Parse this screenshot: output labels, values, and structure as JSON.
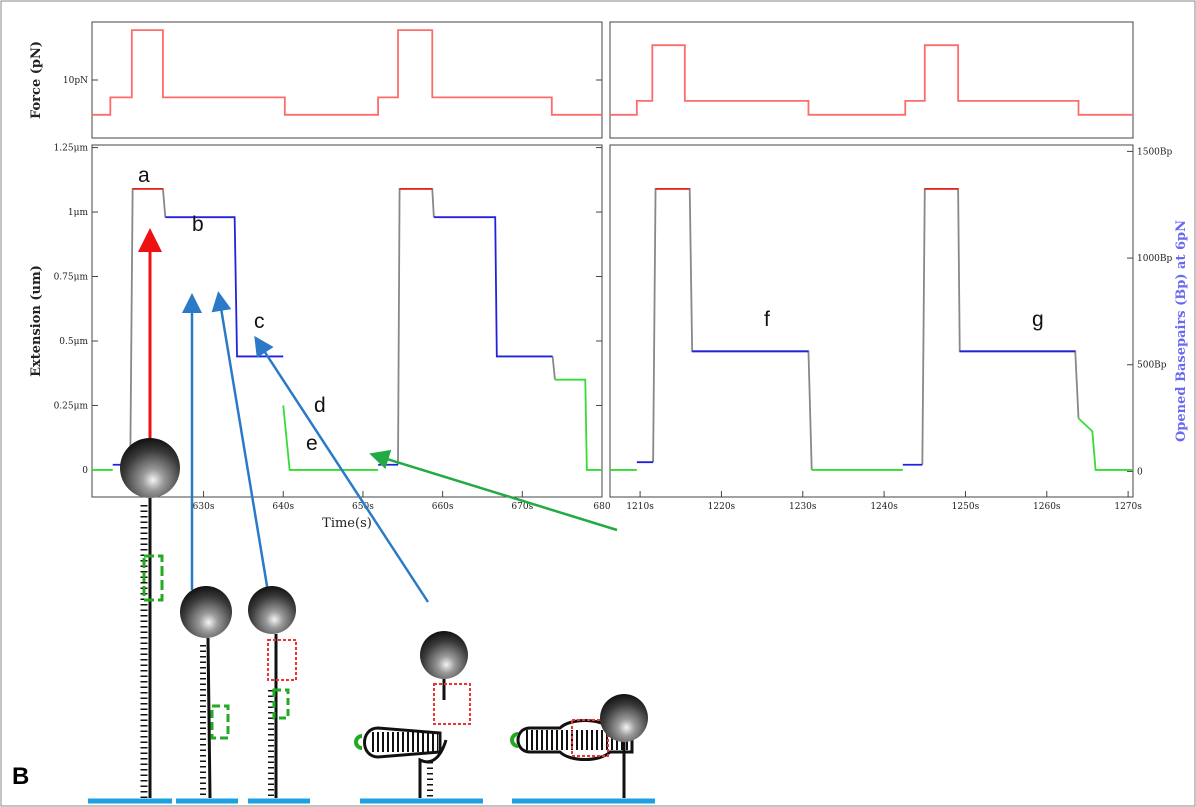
{
  "chart_data": [
    {
      "type": "line",
      "ylabel": "Force (pN)",
      "x": [
        616,
        618.3,
        618.3,
        621,
        621,
        624.9,
        624.9,
        640.2,
        640.2,
        651.9,
        651.9,
        654.4,
        654.4,
        658.7,
        658.7,
        673.7,
        673.7,
        680
      ],
      "xlim": [
        616,
        680
      ],
      "ylim": [
        0,
        20
      ],
      "yticks": [
        {
          "value": 10,
          "label": "10pN"
        }
      ],
      "series": [
        {
          "color": "#ff6b6b",
          "values": [
            4,
            4,
            7,
            7,
            18.6,
            18.6,
            7,
            7,
            4,
            4,
            7,
            7,
            18.6,
            18.6,
            7,
            7,
            4,
            4
          ]
        }
      ]
    },
    {
      "type": "line",
      "ylabel": "Extension (um)",
      "xlabel": "Time(s)",
      "x": [
        616,
        618.6,
        620.8,
        621.1,
        624.9,
        625.2,
        633.9,
        634.2,
        640.0,
        640.8,
        651.9,
        654.4,
        654.6,
        658.7,
        658.9,
        666.6,
        666.8,
        673.8,
        674.1,
        677.9,
        678.1,
        680
      ],
      "xlim": [
        616,
        680
      ],
      "xticks": [
        {
          "value": 630,
          "label": "630s"
        },
        {
          "value": 640,
          "label": "640s"
        },
        {
          "value": 650,
          "label": "650s"
        },
        {
          "value": 660,
          "label": "660s"
        },
        {
          "value": 670,
          "label": "670s"
        },
        680
      ],
      "ylim": [
        -0.105,
        1.26
      ],
      "yticks": [
        0,
        {
          "value": 0.25,
          "label": "0.25μm"
        },
        {
          "value": 0.5,
          "label": "0.5μm"
        },
        {
          "value": 0.75,
          "label": "0.75μm"
        },
        {
          "value": 1,
          "label": "1μm"
        },
        {
          "value": 1.25,
          "label": "1.25μm"
        }
      ],
      "series": [
        {
          "color": "#888888",
          "values": [
            null,
            null,
            0.02,
            1.09,
            1.09,
            0.98,
            null,
            null,
            null,
            null,
            null,
            0.02,
            1.09,
            1.09,
            0.98,
            null,
            null,
            0.44,
            0.35,
            null,
            null,
            null
          ]
        },
        {
          "color": "#33dd33",
          "values": [
            0,
            0,
            null,
            null,
            null,
            null,
            null,
            null,
            0.25,
            0,
            0,
            null,
            null,
            null,
            null,
            null,
            null,
            null,
            0.35,
            0.35,
            0,
            0
          ]
        },
        {
          "color": "#2222dd",
          "values": [
            null,
            0.02,
            0.02,
            null,
            null,
            0.98,
            0.98,
            0.44,
            0.44,
            null,
            0.02,
            0.02,
            null,
            null,
            0.98,
            0.98,
            0.44,
            0.44,
            null,
            null,
            null,
            null
          ]
        },
        {
          "color": "#ee2222",
          "values": [
            null,
            null,
            null,
            1.09,
            1.09,
            null,
            null,
            null,
            null,
            null,
            null,
            null,
            1.09,
            1.09,
            null,
            null,
            null,
            null,
            null,
            null,
            null,
            null
          ]
        }
      ]
    },
    {
      "type": "line",
      "x": [
        1206.3,
        1209.6,
        1209.6,
        1211.5,
        1211.5,
        1215.5,
        1215.5,
        1230.7,
        1230.7,
        1242.6,
        1242.6,
        1245.0,
        1245.0,
        1249.1,
        1249.1,
        1263.9,
        1263.9,
        1270.6
      ],
      "xlim": [
        1206.3,
        1270.6
      ],
      "ylim": [
        0,
        20
      ],
      "series": [
        {
          "color": "#ff6b6b",
          "values": [
            4,
            4,
            6.4,
            6.4,
            16,
            16,
            6.4,
            6.4,
            4,
            4,
            6.4,
            6.4,
            16,
            16,
            6.4,
            6.4,
            4,
            4
          ]
        }
      ]
    },
    {
      "type": "line",
      "y2label": "Opened Basepairs (Bp) at 6pN",
      "x": [
        1206.3,
        1209.6,
        1211.6,
        1211.9,
        1216.1,
        1216.4,
        1230.7,
        1231.1,
        1242.3,
        1244.7,
        1245.0,
        1249.1,
        1249.3,
        1263.5,
        1263.9,
        1265.6,
        1266.0,
        1270.6
      ],
      "xlim": [
        1206.3,
        1270.6
      ],
      "xticks": [
        {
          "value": 1210,
          "label": "1210s"
        },
        {
          "value": 1220,
          "label": "1220s"
        },
        {
          "value": 1230,
          "label": "1230s"
        },
        {
          "value": 1240,
          "label": "1240s"
        },
        {
          "value": 1250,
          "label": "1250s"
        },
        {
          "value": 1260,
          "label": "1260s"
        },
        {
          "value": 1270,
          "label": "1270s"
        }
      ],
      "ylim": [
        -0.105,
        1.26
      ],
      "y2lim": [
        -120,
        1530
      ],
      "y2ticks": [
        0,
        {
          "value": 500,
          "label": "500Bp"
        },
        {
          "value": 1000,
          "label": "1000Bp"
        },
        {
          "value": 1500,
          "label": "1500Bp"
        }
      ],
      "series": [
        {
          "color": "#888888",
          "values": [
            null,
            null,
            0.03,
            1.09,
            1.09,
            0.46,
            0.46,
            0,
            null,
            0.02,
            1.09,
            1.09,
            0.46,
            0.46,
            0.2,
            null,
            null,
            null
          ]
        },
        {
          "color": "#33dd33",
          "values": [
            0,
            0,
            null,
            null,
            null,
            null,
            null,
            0,
            0,
            null,
            null,
            null,
            null,
            null,
            0.2,
            0.15,
            0,
            0
          ]
        },
        {
          "color": "#2222dd",
          "values": [
            null,
            0.03,
            0.03,
            null,
            null,
            0.46,
            0.46,
            null,
            0.02,
            0.02,
            null,
            null,
            0.46,
            0.46,
            null,
            null,
            null,
            null
          ]
        },
        {
          "color": "#ee2222",
          "values": [
            null,
            null,
            null,
            1.09,
            1.09,
            null,
            null,
            null,
            null,
            null,
            1.09,
            1.09,
            null,
            null,
            null,
            null,
            null,
            null
          ]
        }
      ]
    }
  ],
  "annotations": [
    "a",
    "b",
    "c",
    "d",
    "e",
    "f",
    "g"
  ],
  "panel_label": "B"
}
